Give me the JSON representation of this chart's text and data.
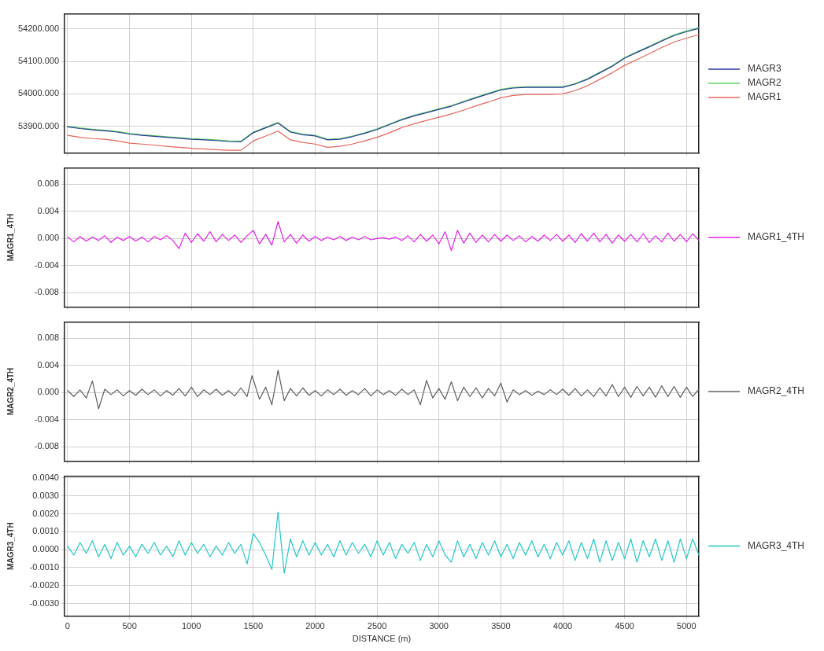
{
  "chart_data": [
    {
      "type": "line",
      "x": [
        0,
        100,
        200,
        300,
        400,
        500,
        600,
        700,
        800,
        900,
        1000,
        1100,
        1200,
        1300,
        1400,
        1500,
        1600,
        1700,
        1800,
        1900,
        2000,
        2100,
        2200,
        2300,
        2400,
        2500,
        2600,
        2700,
        2800,
        2900,
        3000,
        3100,
        3200,
        3300,
        3400,
        3500,
        3600,
        3700,
        3800,
        3900,
        4000,
        4100,
        4200,
        4300,
        4400,
        4500,
        4600,
        4700,
        4800,
        4900,
        5000,
        5100
      ],
      "series": [
        {
          "name": "MAGR3",
          "color": "#2b3a9c",
          "values": [
            53898,
            53893,
            53889,
            53886,
            53882,
            53876,
            53872,
            53869,
            53866,
            53863,
            53860,
            53858,
            53856,
            53853,
            53852,
            53880,
            53895,
            53910,
            53882,
            53874,
            53870,
            53858,
            53860,
            53868,
            53878,
            53890,
            53905,
            53920,
            53932,
            53942,
            53952,
            53962,
            53975,
            53988,
            54000,
            54012,
            54018,
            54020,
            54020,
            54020,
            54020,
            54030,
            54045,
            54065,
            54085,
            54110,
            54128,
            54145,
            54163,
            54180,
            54192,
            54202
          ]
        },
        {
          "name": "MAGR2",
          "color": "#5cd65c",
          "values": [
            53900,
            53895,
            53891,
            53888,
            53884,
            53878,
            53874,
            53871,
            53868,
            53865,
            53862,
            53860,
            53858,
            53855,
            53854,
            53882,
            53897,
            53912,
            53884,
            53876,
            53872,
            53860,
            53862,
            53870,
            53880,
            53892,
            53907,
            53922,
            53934,
            53944,
            53954,
            53964,
            53977,
            53990,
            54002,
            54014,
            54020,
            54022,
            54022,
            54022,
            54022,
            54032,
            54047,
            54067,
            54087,
            54112,
            54130,
            54147,
            54165,
            54182,
            54194,
            54204
          ]
        },
        {
          "name": "MAGR1",
          "color": "#e8645c",
          "values": [
            53872,
            53866,
            53862,
            53860,
            53855,
            53848,
            53845,
            53842,
            53838,
            53835,
            53832,
            53830,
            53828,
            53826,
            53826,
            53855,
            53870,
            53885,
            53858,
            53850,
            53845,
            53835,
            53838,
            53845,
            53855,
            53866,
            53880,
            53896,
            53908,
            53918,
            53928,
            53938,
            53950,
            53963,
            53975,
            53988,
            53995,
            53998,
            53998,
            53998,
            54000,
            54010,
            54025,
            54045,
            54065,
            54088,
            54106,
            54124,
            54143,
            54160,
            54172,
            54183
          ]
        }
      ],
      "xlim": [
        -25,
        5100
      ],
      "xticks": [
        0,
        500,
        1000,
        1500,
        2000,
        2500,
        3000,
        3500,
        4000,
        4500,
        5000
      ],
      "ylim": [
        53818,
        54247
      ],
      "yticks": [
        {
          "value": 53900,
          "label": "53900.000"
        },
        {
          "value": 54000,
          "label": "54000.000"
        },
        {
          "value": 54100,
          "label": "54100.000"
        },
        {
          "value": 54200,
          "label": "54200.000"
        }
      ],
      "grid": true,
      "legend": "right",
      "tick_labels": "y"
    },
    {
      "type": "line",
      "x": [
        0,
        50,
        100,
        150,
        200,
        250,
        300,
        350,
        400,
        450,
        500,
        550,
        600,
        650,
        700,
        750,
        800,
        850,
        900,
        950,
        1000,
        1050,
        1100,
        1150,
        1200,
        1250,
        1300,
        1350,
        1400,
        1450,
        1500,
        1550,
        1600,
        1650,
        1700,
        1750,
        1800,
        1850,
        1900,
        1950,
        2000,
        2050,
        2100,
        2150,
        2200,
        2250,
        2300,
        2350,
        2400,
        2450,
        2500,
        2550,
        2600,
        2650,
        2700,
        2750,
        2800,
        2850,
        2900,
        2950,
        3000,
        3050,
        3100,
        3150,
        3200,
        3250,
        3300,
        3350,
        3400,
        3450,
        3500,
        3550,
        3600,
        3650,
        3700,
        3750,
        3800,
        3850,
        3900,
        3950,
        4000,
        4050,
        4100,
        4150,
        4200,
        4250,
        4300,
        4350,
        4400,
        4450,
        4500,
        4550,
        4600,
        4650,
        4700,
        4750,
        4800,
        4850,
        4900,
        4950,
        5000,
        5050,
        5100
      ],
      "series": [
        {
          "name": "MAGR1_4TH",
          "color": "#e620e6",
          "values": [
            0.0002,
            -0.0005,
            0.0003,
            -0.0004,
            0.0002,
            -0.0003,
            0.0004,
            -0.0006,
            0.0002,
            -0.0003,
            0.0003,
            -0.0004,
            0.0002,
            -0.0005,
            0.0003,
            -0.0002,
            0.0004,
            -0.0003,
            -0.0015,
            0.0008,
            -0.0006,
            0.0007,
            -0.0004,
            0.001,
            -0.0005,
            0.0006,
            -0.0003,
            0.0005,
            -0.0006,
            0.0004,
            0.0012,
            -0.0008,
            0.0006,
            -0.001,
            0.0025,
            -0.0005,
            0.0006,
            -0.0007,
            0.0005,
            -0.0004,
            0.0003,
            -0.0003,
            0.0002,
            -0.0002,
            0.0003,
            -0.0003,
            0.0002,
            -0.0002,
            0.0003,
            -0.0002,
            0,
            0.0001,
            -0.0001,
            0.0002,
            -0.0003,
            0.0004,
            -0.0005,
            0.0006,
            -0.0004,
            0.0005,
            -0.0008,
            0.001,
            -0.0018,
            0.0012,
            -0.0007,
            0.0008,
            -0.0006,
            0.0005,
            -0.0005,
            0.0006,
            -0.0004,
            0.0005,
            -0.0003,
            0.0004,
            -0.0005,
            0.0003,
            -0.0004,
            0.0005,
            -0.0003,
            0.0006,
            -0.0004,
            0.0005,
            -0.0006,
            0.0007,
            -0.0004,
            0.0008,
            -0.0005,
            0.0006,
            -0.0007,
            0.0005,
            -0.0004,
            0.0006,
            -0.0005,
            0.0007,
            -0.0006,
            0.0004,
            -0.0005,
            0.0008,
            -0.0004,
            0.0006,
            -0.0005,
            0.0007,
            -0.0003
          ]
        }
      ],
      "xlim": [
        -25,
        5100
      ],
      "xticks": [
        0,
        500,
        1000,
        1500,
        2000,
        2500,
        3000,
        3500,
        4000,
        4500,
        5000
      ],
      "ylim": [
        -0.0101,
        0.0104
      ],
      "yticks": [
        {
          "value": -0.008,
          "label": "-0.008"
        },
        {
          "value": -0.004,
          "label": "-0.004"
        },
        {
          "value": 0,
          "label": "0.000"
        },
        {
          "value": 0.004,
          "label": "0.004"
        },
        {
          "value": 0.008,
          "label": "0.008"
        }
      ],
      "ylabel": "MAGR1_4TH",
      "grid": true,
      "legend": "right",
      "tick_labels": "y"
    },
    {
      "type": "line",
      "x": [
        0,
        50,
        100,
        150,
        200,
        250,
        300,
        350,
        400,
        450,
        500,
        550,
        600,
        650,
        700,
        750,
        800,
        850,
        900,
        950,
        1000,
        1050,
        1100,
        1150,
        1200,
        1250,
        1300,
        1350,
        1400,
        1450,
        1490,
        1550,
        1600,
        1650,
        1700,
        1750,
        1800,
        1850,
        1900,
        1950,
        2000,
        2050,
        2100,
        2150,
        2200,
        2250,
        2300,
        2350,
        2400,
        2450,
        2500,
        2550,
        2600,
        2650,
        2700,
        2750,
        2800,
        2850,
        2900,
        2950,
        3000,
        3050,
        3100,
        3150,
        3200,
        3250,
        3300,
        3350,
        3400,
        3450,
        3500,
        3550,
        3600,
        3650,
        3700,
        3750,
        3800,
        3850,
        3900,
        3950,
        4000,
        4050,
        4100,
        4150,
        4200,
        4250,
        4300,
        4350,
        4400,
        4450,
        4500,
        4550,
        4600,
        4650,
        4700,
        4750,
        4800,
        4850,
        4900,
        4950,
        5000,
        5050,
        5100
      ],
      "series": [
        {
          "name": "MAGR2_4TH",
          "color": "#5f5f5f",
          "values": [
            0.0003,
            -0.0006,
            0.0004,
            -0.0008,
            0.0017,
            -0.0024,
            0.0005,
            -0.0003,
            0.0004,
            -0.0005,
            0.0003,
            -0.0004,
            0.0005,
            -0.0003,
            0.0004,
            -0.0005,
            0.0003,
            -0.0004,
            0.0006,
            -0.0005,
            0.0008,
            -0.0006,
            0.0004,
            -0.0003,
            0.0005,
            -0.0004,
            0.0003,
            -0.0005,
            0.0007,
            -0.0006,
            0.0025,
            -0.001,
            0.0008,
            -0.0018,
            0.0033,
            -0.0012,
            0.0006,
            -0.0005,
            0.0007,
            -0.0004,
            0.0003,
            -0.0005,
            0.0004,
            -0.0003,
            0.0005,
            -0.0004,
            0.0003,
            -0.0003,
            0.0006,
            -0.0005,
            0.0004,
            -0.0003,
            0.0003,
            -0.0004,
            0.0005,
            -0.0003,
            0.0004,
            -0.0018,
            0.0018,
            -0.0008,
            0.0006,
            -0.001,
            0.0016,
            -0.0012,
            0.0008,
            -0.0006,
            0.0007,
            -0.0008,
            0.0006,
            -0.0005,
            0.0014,
            -0.0014,
            0.0004,
            -0.0003,
            0.0003,
            -0.0004,
            0.0002,
            -0.0003,
            0.0004,
            -0.0003,
            0.0005,
            -0.0004,
            0.0006,
            -0.0005,
            0.0004,
            -0.0006,
            0.0007,
            -0.0005,
            0.0012,
            -0.0006,
            0.0008,
            -0.0007,
            0.0009,
            -0.0005,
            0.0008,
            -0.0007,
            0.001,
            -0.0006,
            0.0009,
            -0.0007,
            0.0008,
            -0.0006,
            0.0005
          ]
        }
      ],
      "xlim": [
        -25,
        5100
      ],
      "xticks": [
        0,
        500,
        1000,
        1500,
        2000,
        2500,
        3000,
        3500,
        4000,
        4500,
        5000
      ],
      "ylim": [
        -0.0101,
        0.0104
      ],
      "yticks": [
        {
          "value": -0.008,
          "label": "-0.008"
        },
        {
          "value": -0.004,
          "label": "-0.004"
        },
        {
          "value": 0,
          "label": "0.000"
        },
        {
          "value": 0.004,
          "label": "0.004"
        },
        {
          "value": 0.008,
          "label": "0.008"
        }
      ],
      "ylabel": "MAGR2_4TH",
      "grid": true,
      "legend": "right",
      "tick_labels": "y"
    },
    {
      "type": "line",
      "x": [
        0,
        50,
        100,
        150,
        200,
        250,
        300,
        350,
        400,
        450,
        500,
        550,
        600,
        650,
        700,
        750,
        800,
        850,
        900,
        950,
        1000,
        1050,
        1100,
        1150,
        1200,
        1250,
        1300,
        1350,
        1400,
        1450,
        1500,
        1550,
        1600,
        1650,
        1700,
        1750,
        1800,
        1850,
        1900,
        1950,
        2000,
        2050,
        2100,
        2150,
        2200,
        2250,
        2300,
        2350,
        2400,
        2450,
        2500,
        2550,
        2600,
        2650,
        2700,
        2750,
        2800,
        2850,
        2900,
        2950,
        3000,
        3050,
        3100,
        3150,
        3200,
        3250,
        3300,
        3350,
        3400,
        3450,
        3500,
        3550,
        3600,
        3650,
        3700,
        3750,
        3800,
        3850,
        3900,
        3950,
        4000,
        4050,
        4100,
        4150,
        4200,
        4250,
        4300,
        4350,
        4400,
        4450,
        4500,
        4550,
        4600,
        4650,
        4700,
        4750,
        4800,
        4850,
        4900,
        4950,
        5000,
        5050,
        5100
      ],
      "series": [
        {
          "name": "MAGR3_4TH",
          "color": "#22c8c8",
          "values": [
            0.0002,
            -0.0003,
            0.0004,
            -0.0002,
            0.0005,
            -0.0004,
            0.0003,
            -0.0005,
            0.0004,
            -0.0003,
            0.0002,
            -0.0004,
            0.0003,
            -0.0002,
            0.0004,
            -0.0003,
            0.0002,
            -0.0004,
            0.0005,
            -0.0003,
            0.0004,
            -0.0002,
            0.0003,
            -0.0004,
            0.0002,
            -0.0003,
            0.0004,
            -0.0002,
            0.0003,
            -0.0008,
            0.0009,
            0.0004,
            -0.0003,
            -0.0011,
            0.0021,
            -0.0013,
            0.0006,
            -0.0004,
            0.0005,
            -0.0003,
            0.0004,
            -0.0003,
            0.0003,
            -0.0004,
            0.0005,
            -0.0003,
            0.0004,
            -0.0002,
            0.0003,
            -0.0004,
            0.0005,
            -0.0003,
            0.0004,
            -0.0005,
            0.0003,
            -0.0002,
            0.0004,
            -0.0006,
            0.0003,
            -0.0004,
            0.0005,
            -0.0003,
            -0.0007,
            0.0005,
            -0.0004,
            0.0003,
            -0.0005,
            0.0004,
            -0.0003,
            0.0005,
            -0.0004,
            0.0003,
            -0.0005,
            0.0004,
            -0.0003,
            0.0005,
            -0.0004,
            0.0003,
            -0.0005,
            0.0004,
            -0.0003,
            0.0005,
            -0.0006,
            0.0004,
            -0.0005,
            0.0006,
            -0.0007,
            0.0005,
            -0.0006,
            0.0004,
            -0.0005,
            0.0006,
            -0.0007,
            0.0005,
            -0.0004,
            0.0006,
            -0.0006,
            0.0005,
            -0.0007,
            0.0006,
            -0.0005,
            0.0006,
            -0.0003
          ]
        }
      ],
      "xlim": [
        -25,
        5100
      ],
      "xticks": [
        0,
        500,
        1000,
        1500,
        2000,
        2500,
        3000,
        3500,
        4000,
        4500,
        5000
      ],
      "ylim": [
        -0.0037,
        0.0041
      ],
      "yticks": [
        {
          "value": -0.003,
          "label": "-0.0030"
        },
        {
          "value": -0.002,
          "label": "-0.0020"
        },
        {
          "value": -0.001,
          "label": "-0.0010"
        },
        {
          "value": 0,
          "label": "0.0000"
        },
        {
          "value": 0.001,
          "label": "0.0010"
        },
        {
          "value": 0.002,
          "label": "0.0020"
        },
        {
          "value": 0.003,
          "label": "0.0030"
        },
        {
          "value": 0.004,
          "label": "0.0040"
        }
      ],
      "xlabel": "DISTANCE (m)",
      "ylabel": "MAGR3_4TH",
      "grid": true,
      "legend": "right"
    }
  ]
}
